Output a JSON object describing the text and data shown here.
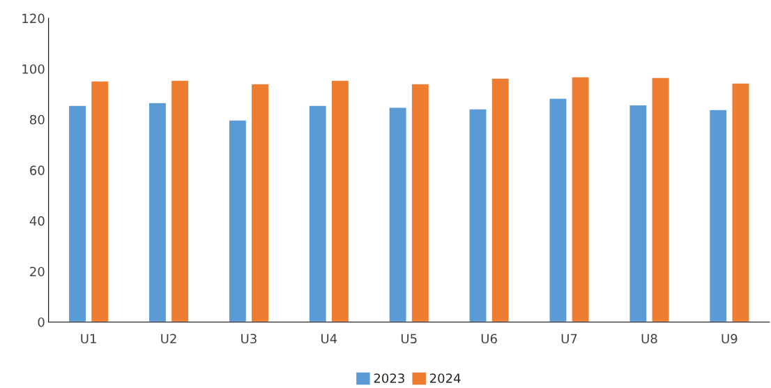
{
  "chart_data": {
    "type": "bar",
    "categories": [
      "U1",
      "U2",
      "U3",
      "U4",
      "U5",
      "U6",
      "U7",
      "U8",
      "U9"
    ],
    "series": [
      {
        "name": "2023",
        "color": "#5b9bd5",
        "values": [
          85.6,
          86.7,
          79.8,
          85.6,
          84.8,
          84.2,
          88.4,
          85.8,
          83.9
        ]
      },
      {
        "name": "2024",
        "color": "#ed7d31",
        "values": [
          95.2,
          95.5,
          94.1,
          95.5,
          94.1,
          96.3,
          96.9,
          96.6,
          94.4
        ]
      }
    ],
    "ylim": [
      0,
      120
    ],
    "yticks": [
      0,
      20,
      40,
      60,
      80,
      100,
      120
    ],
    "grid": false,
    "legend": "bottom"
  }
}
